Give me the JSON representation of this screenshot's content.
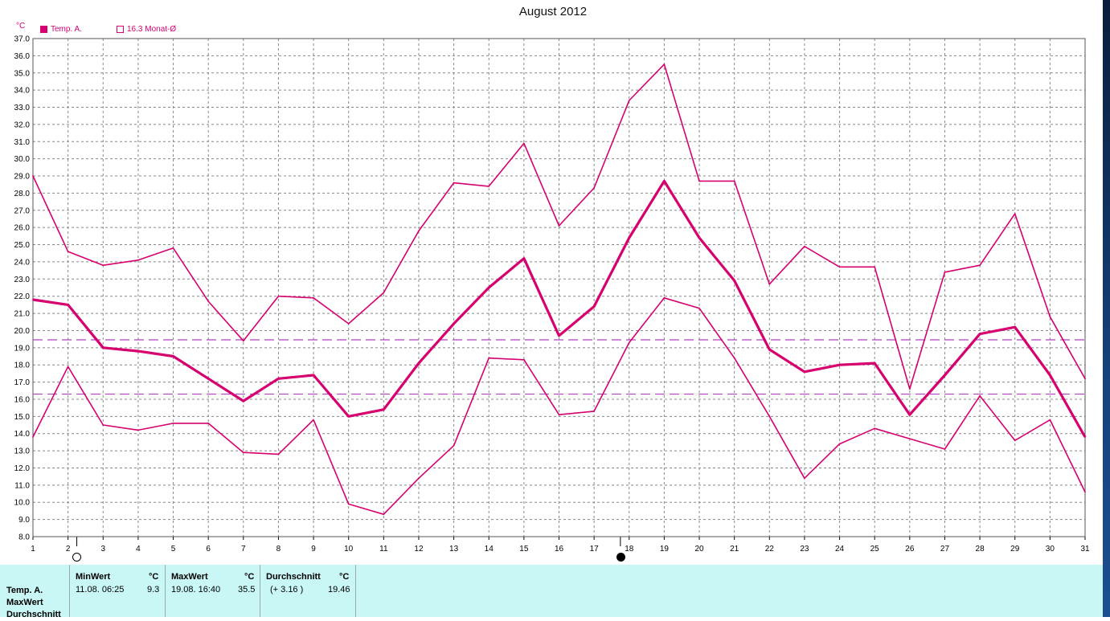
{
  "window": {
    "title": "August 2012",
    "unit": "°C"
  },
  "legend": {
    "item1": "Temp. A.",
    "item2": "16.3 Monat-Ø"
  },
  "colors": {
    "series": "#d6006f",
    "reference": "#b040c0",
    "grid": "#888888",
    "stats_bg": "#c8f7f5"
  },
  "moon_phases": [
    {
      "day": 2.25,
      "phase": "full-moon-icon"
    },
    {
      "day": 17.75,
      "phase": "new-moon-icon"
    }
  ],
  "chart_data": {
    "type": "line",
    "title": "August 2012",
    "ylabel": "°C",
    "x": [
      1,
      2,
      3,
      4,
      5,
      6,
      7,
      8,
      9,
      10,
      11,
      12,
      13,
      14,
      15,
      16,
      17,
      18,
      19,
      20,
      21,
      22,
      23,
      24,
      25,
      26,
      27,
      28,
      29,
      30,
      31
    ],
    "ylim": [
      8.0,
      37.0
    ],
    "ytick_step": 1.0,
    "grid": true,
    "series": [
      {
        "key": "max",
        "values": [
          29.0,
          24.6,
          23.8,
          24.1,
          24.8,
          21.7,
          19.4,
          22.0,
          21.9,
          20.4,
          22.2,
          25.8,
          28.6,
          28.4,
          30.9,
          26.1,
          28.3,
          33.4,
          35.5,
          28.7,
          28.7,
          22.7,
          24.9,
          23.7,
          23.7,
          16.6,
          23.4,
          23.8,
          26.8,
          20.8,
          17.2
        ],
        "width": 1.6
      },
      {
        "key": "mean",
        "values": [
          21.8,
          21.5,
          19.0,
          18.8,
          18.5,
          17.2,
          15.9,
          17.2,
          17.4,
          15.0,
          15.4,
          18.1,
          20.4,
          22.5,
          24.2,
          19.7,
          21.4,
          25.4,
          28.7,
          25.4,
          22.9,
          18.9,
          17.6,
          18.0,
          18.1,
          15.1,
          17.4,
          19.8,
          20.2,
          17.4,
          13.8
        ],
        "width": 3.2
      },
      {
        "key": "min",
        "values": [
          13.8,
          17.9,
          14.5,
          14.2,
          14.6,
          14.6,
          12.9,
          12.8,
          14.8,
          9.9,
          9.3,
          11.4,
          13.3,
          18.4,
          18.3,
          15.1,
          15.3,
          19.3,
          21.9,
          21.3,
          18.4,
          15.0,
          11.4,
          13.4,
          14.3,
          13.7,
          13.1,
          16.2,
          13.6,
          14.8,
          10.6
        ],
        "width": 1.6
      }
    ],
    "reference_lines": [
      19.46,
      16.3
    ]
  },
  "stats": {
    "row_labels": [
      "Temp. A.",
      "MaxWert",
      "Durchschnitt"
    ],
    "min": {
      "header": "MinWert",
      "unit": "°C",
      "when": "11.08.  06:25",
      "value": "9.3"
    },
    "max": {
      "header": "MaxWert",
      "unit": "°C",
      "when": "19.08.  16:40",
      "value": "35.5"
    },
    "avg": {
      "header": "Durchschnitt",
      "unit": "°C",
      "when": "(+ 3.16 )",
      "value": "19.46"
    }
  }
}
